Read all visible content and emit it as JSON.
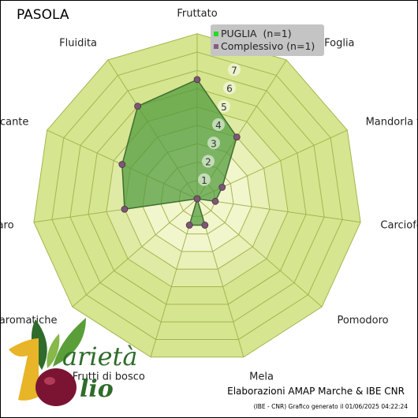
{
  "title": "PASOLA",
  "legend": [
    {
      "label": "PUGLIA  (n=1)",
      "color": "#22dd22"
    },
    {
      "label": "Complessivo (n=1)",
      "color": "#8a5a7a"
    }
  ],
  "footer": {
    "credit": "Elaborazioni AMAP Marche & IBE CNR",
    "generated": "(IBE - CNR) Grafico generato il 01/06/2025 04:22:24"
  },
  "logo_text": {
    "word1": "arietà",
    "word2": "lio"
  },
  "chart_data": {
    "type": "radar",
    "axes": [
      "Fruttato",
      "Erba/Foglia",
      "Mandorla fresca",
      "Carciofo",
      "Pomodoro",
      "Mela",
      "Frutti di bosco",
      "Erbe aromatiche",
      "Amaro",
      "Piccante",
      "Fluidita"
    ],
    "ticks": [
      "1",
      "2",
      "3",
      "4",
      "5",
      "6",
      "7"
    ],
    "range": [
      0,
      9
    ],
    "series": [
      {
        "name": "PUGLIA  (n=1)",
        "values": [
          6.5,
          4.0,
          1.5,
          1.0,
          0.0,
          1.5,
          1.5,
          0.0,
          4.0,
          4.5,
          6.0
        ]
      },
      {
        "name": "Complessivo (n=1)",
        "values": [
          6.5,
          4.0,
          1.5,
          1.0,
          0.0,
          1.5,
          1.5,
          0.0,
          4.0,
          4.5,
          6.0
        ]
      }
    ],
    "colors": {
      "band_outer": "#d6e58f",
      "band_inner": "#f2f6cd",
      "grid_line": "#a5b550",
      "area_fill": "#4e9a3c",
      "area_stroke": "#3f6f31",
      "marker": "#7d5773"
    }
  }
}
